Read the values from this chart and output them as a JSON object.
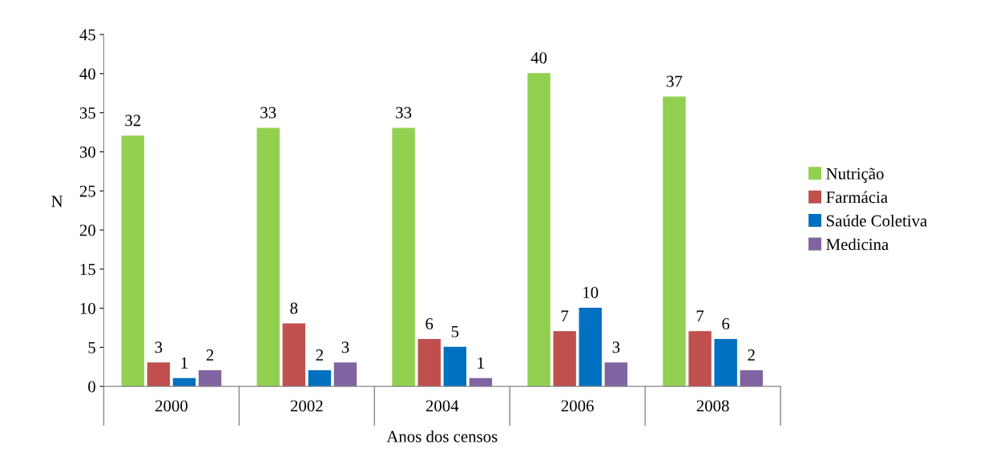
{
  "chart_data": {
    "type": "bar",
    "xlabel": "Anos dos censos",
    "ylabel": "N",
    "categories": [
      "2000",
      "2002",
      "2004",
      "2006",
      "2008"
    ],
    "series": [
      {
        "name": "Nutrição",
        "color": "#92d050",
        "values": [
          32,
          33,
          33,
          40,
          37
        ]
      },
      {
        "name": "Farmácia",
        "color": "#c0504d",
        "values": [
          3,
          8,
          6,
          7,
          7
        ]
      },
      {
        "name": "Saúde Coletiva",
        "color": "#0070c0",
        "values": [
          1,
          2,
          5,
          10,
          6
        ]
      },
      {
        "name": "Medicina",
        "color": "#8064a2",
        "values": [
          2,
          3,
          1,
          3,
          2
        ]
      }
    ],
    "ylim": [
      0,
      45
    ],
    "yticks": [
      0,
      5,
      10,
      15,
      20,
      25,
      30,
      35,
      40,
      45
    ],
    "data_labels": true,
    "grid": false,
    "legend": "right"
  }
}
